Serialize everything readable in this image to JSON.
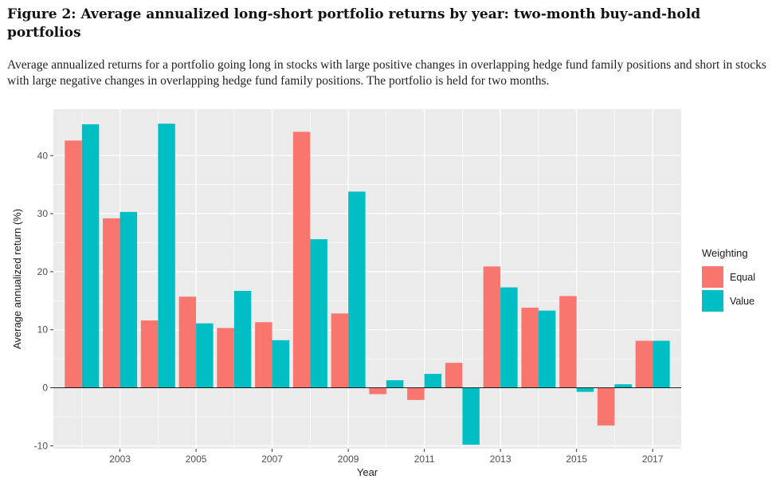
{
  "figure": {
    "title": "Figure 2: Average annualized long-short portfolio returns by year: two-month buy-and-hold portfolios",
    "caption": "Average annualized returns for a portfolio going long in stocks with large positive changes in overlapping hedge fund family positions and short in stocks with large negative changes in overlapping hedge fund family positions. The portfolio is held for two months."
  },
  "colors": {
    "equal": "#F8766D",
    "value": "#00BFC4",
    "panel": "#EBEBEB",
    "grid": "#FFFFFF"
  },
  "chart_data": {
    "type": "bar",
    "xlabel": "Year",
    "ylabel": "Average annualized return (%)",
    "x": [
      2002,
      2003,
      2004,
      2005,
      2006,
      2007,
      2008,
      2009,
      2010,
      2011,
      2012,
      2013,
      2014,
      2015,
      2016,
      2017
    ],
    "x_tick_labels": [
      "2003",
      "2005",
      "2007",
      "2009",
      "2011",
      "2013",
      "2015",
      "2017"
    ],
    "y_ticks": [
      -10,
      0,
      10,
      20,
      30,
      40
    ],
    "ylim": [
      -10.5,
      48
    ],
    "legend_title": "Weighting",
    "legend_position": "right",
    "grid": true,
    "series": [
      {
        "name": "Equal",
        "values": [
          42.6,
          29.2,
          11.6,
          15.7,
          10.3,
          11.3,
          44.1,
          12.8,
          -1.1,
          -2.1,
          4.3,
          20.9,
          13.8,
          15.8,
          -6.5,
          8.1
        ]
      },
      {
        "name": "Value",
        "values": [
          45.4,
          30.3,
          45.5,
          11.1,
          16.7,
          8.2,
          25.6,
          33.8,
          1.3,
          2.4,
          -9.8,
          17.3,
          13.3,
          -0.7,
          0.6,
          8.1
        ]
      }
    ]
  }
}
